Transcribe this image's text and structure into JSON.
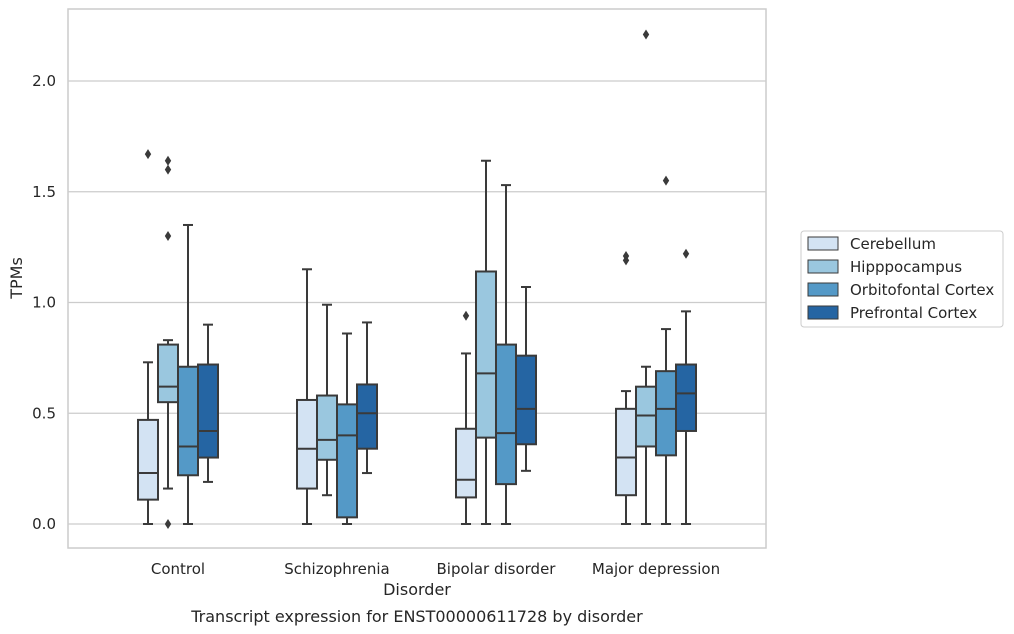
{
  "chart_data": {
    "type": "boxplot",
    "title": "",
    "caption": "Transcript expression for ENST00000611728 by disorder",
    "xlabel": "Disorder",
    "ylabel": "TPMs",
    "ylim": [
      -0.11,
      2.34
    ],
    "yticks": [
      "0.0",
      "0.5",
      "1.0",
      "1.5",
      "2.0"
    ],
    "ytick_values": [
      0,
      0.5,
      1.0,
      1.5,
      2.0
    ],
    "grid": "horizontal",
    "legend_position": "right",
    "categories": [
      "Control",
      "Schizophrenia",
      "Bipolar disorder",
      "Major depression"
    ],
    "series": [
      {
        "name": "Cerebellum",
        "color": "#d3e3f3",
        "boxes": [
          {
            "whislo": 0.0,
            "q1": 0.11,
            "med": 0.23,
            "q3": 0.47,
            "whishi": 0.73,
            "fliers": [
              1.67
            ]
          },
          {
            "whislo": 0.0,
            "q1": 0.16,
            "med": 0.34,
            "q3": 0.56,
            "whishi": 1.15,
            "fliers": []
          },
          {
            "whislo": 0.0,
            "q1": 0.12,
            "med": 0.2,
            "q3": 0.43,
            "whishi": 0.77,
            "fliers": [
              0.94
            ]
          },
          {
            "whislo": 0.0,
            "q1": 0.13,
            "med": 0.3,
            "q3": 0.52,
            "whishi": 0.6,
            "fliers": [
              1.19,
              1.21
            ]
          }
        ]
      },
      {
        "name": "Hipppocampus",
        "color": "#9ac7df",
        "boxes": [
          {
            "whislo": 0.16,
            "q1": 0.55,
            "med": 0.62,
            "q3": 0.81,
            "whishi": 0.83,
            "fliers": [
              0.0,
              1.3,
              1.6,
              1.64
            ]
          },
          {
            "whislo": 0.13,
            "q1": 0.29,
            "med": 0.38,
            "q3": 0.58,
            "whishi": 0.99,
            "fliers": []
          },
          {
            "whislo": 0.0,
            "q1": 0.39,
            "med": 0.68,
            "q3": 1.14,
            "whishi": 1.64,
            "fliers": []
          },
          {
            "whislo": 0.0,
            "q1": 0.35,
            "med": 0.49,
            "q3": 0.62,
            "whishi": 0.71,
            "fliers": [
              2.21
            ]
          }
        ]
      },
      {
        "name": "Orbitofontal Cortex",
        "color": "#5499c7",
        "boxes": [
          {
            "whislo": 0.0,
            "q1": 0.22,
            "med": 0.35,
            "q3": 0.71,
            "whishi": 1.35,
            "fliers": []
          },
          {
            "whislo": 0.0,
            "q1": 0.03,
            "med": 0.4,
            "q3": 0.54,
            "whishi": 0.86,
            "fliers": []
          },
          {
            "whislo": 0.0,
            "q1": 0.18,
            "med": 0.41,
            "q3": 0.81,
            "whishi": 1.53,
            "fliers": []
          },
          {
            "whislo": 0.0,
            "q1": 0.31,
            "med": 0.52,
            "q3": 0.69,
            "whishi": 0.88,
            "fliers": [
              1.55
            ]
          }
        ]
      },
      {
        "name": "Prefrontal Cortex",
        "color": "#2565a3",
        "boxes": [
          {
            "whislo": 0.19,
            "q1": 0.3,
            "med": 0.42,
            "q3": 0.72,
            "whishi": 0.9,
            "fliers": []
          },
          {
            "whislo": 0.23,
            "q1": 0.34,
            "med": 0.5,
            "q3": 0.63,
            "whishi": 0.91,
            "fliers": []
          },
          {
            "whislo": 0.24,
            "q1": 0.36,
            "med": 0.52,
            "q3": 0.76,
            "whishi": 1.07,
            "fliers": []
          },
          {
            "whislo": 0.0,
            "q1": 0.42,
            "med": 0.59,
            "q3": 0.72,
            "whishi": 0.96,
            "fliers": [
              1.22
            ]
          }
        ]
      }
    ]
  }
}
